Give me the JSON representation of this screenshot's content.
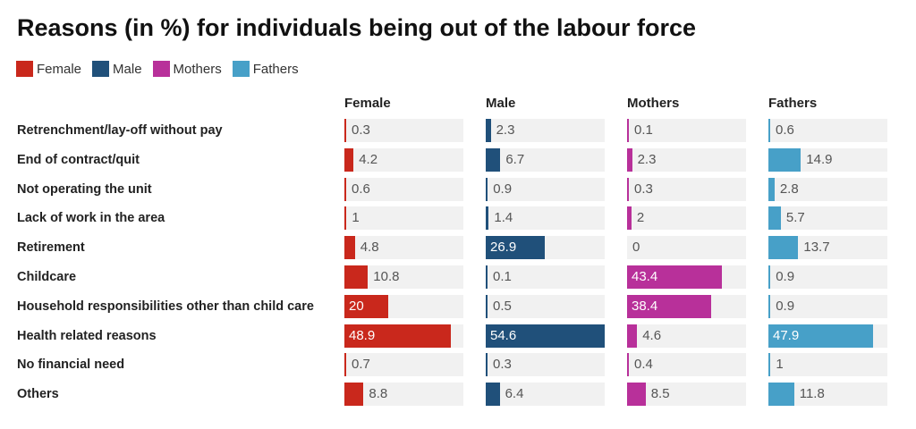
{
  "chart_data": {
    "type": "bar",
    "title": "Reasons (in %) for individuals being out of the labour force",
    "legend_placement": "top-left",
    "categories": [
      "Retrenchment/lay-off without pay",
      "End of contract/quit",
      "Not operating the unit",
      "Lack of work in the area",
      "Retirement",
      "Childcare",
      "Household responsibilities other than child care",
      "Health related reasons",
      "No financial need",
      "Others"
    ],
    "category_labels": [
      "Retrenchment/lay-off without pay",
      "End of contract/quit",
      "Not operating the unit",
      "Lack of work in the area",
      "Retirement",
      "Childcare",
      "Household responsibilities other than child care",
      "Health related reasons",
      "No financial need",
      "Others"
    ],
    "series": [
      {
        "name": "Female",
        "color": "#c9281c",
        "values": [
          0.3,
          4.2,
          0.6,
          1,
          4.8,
          10.8,
          20,
          48.9,
          0.7,
          8.8
        ]
      },
      {
        "name": "Male",
        "color": "#20507a",
        "values": [
          2.3,
          6.7,
          0.9,
          1.4,
          26.9,
          0.1,
          0.5,
          54.6,
          0.3,
          6.4
        ]
      },
      {
        "name": "Mothers",
        "color": "#b8309a",
        "values": [
          0.1,
          2.3,
          0.3,
          2,
          0,
          43.4,
          38.4,
          4.6,
          0.4,
          8.5
        ]
      },
      {
        "name": "Fathers",
        "color": "#47a0c8",
        "values": [
          0.6,
          14.9,
          2.8,
          5.7,
          13.7,
          0.9,
          0.9,
          47.9,
          1,
          11.8
        ]
      }
    ],
    "xlim": [
      0,
      54.6
    ]
  }
}
